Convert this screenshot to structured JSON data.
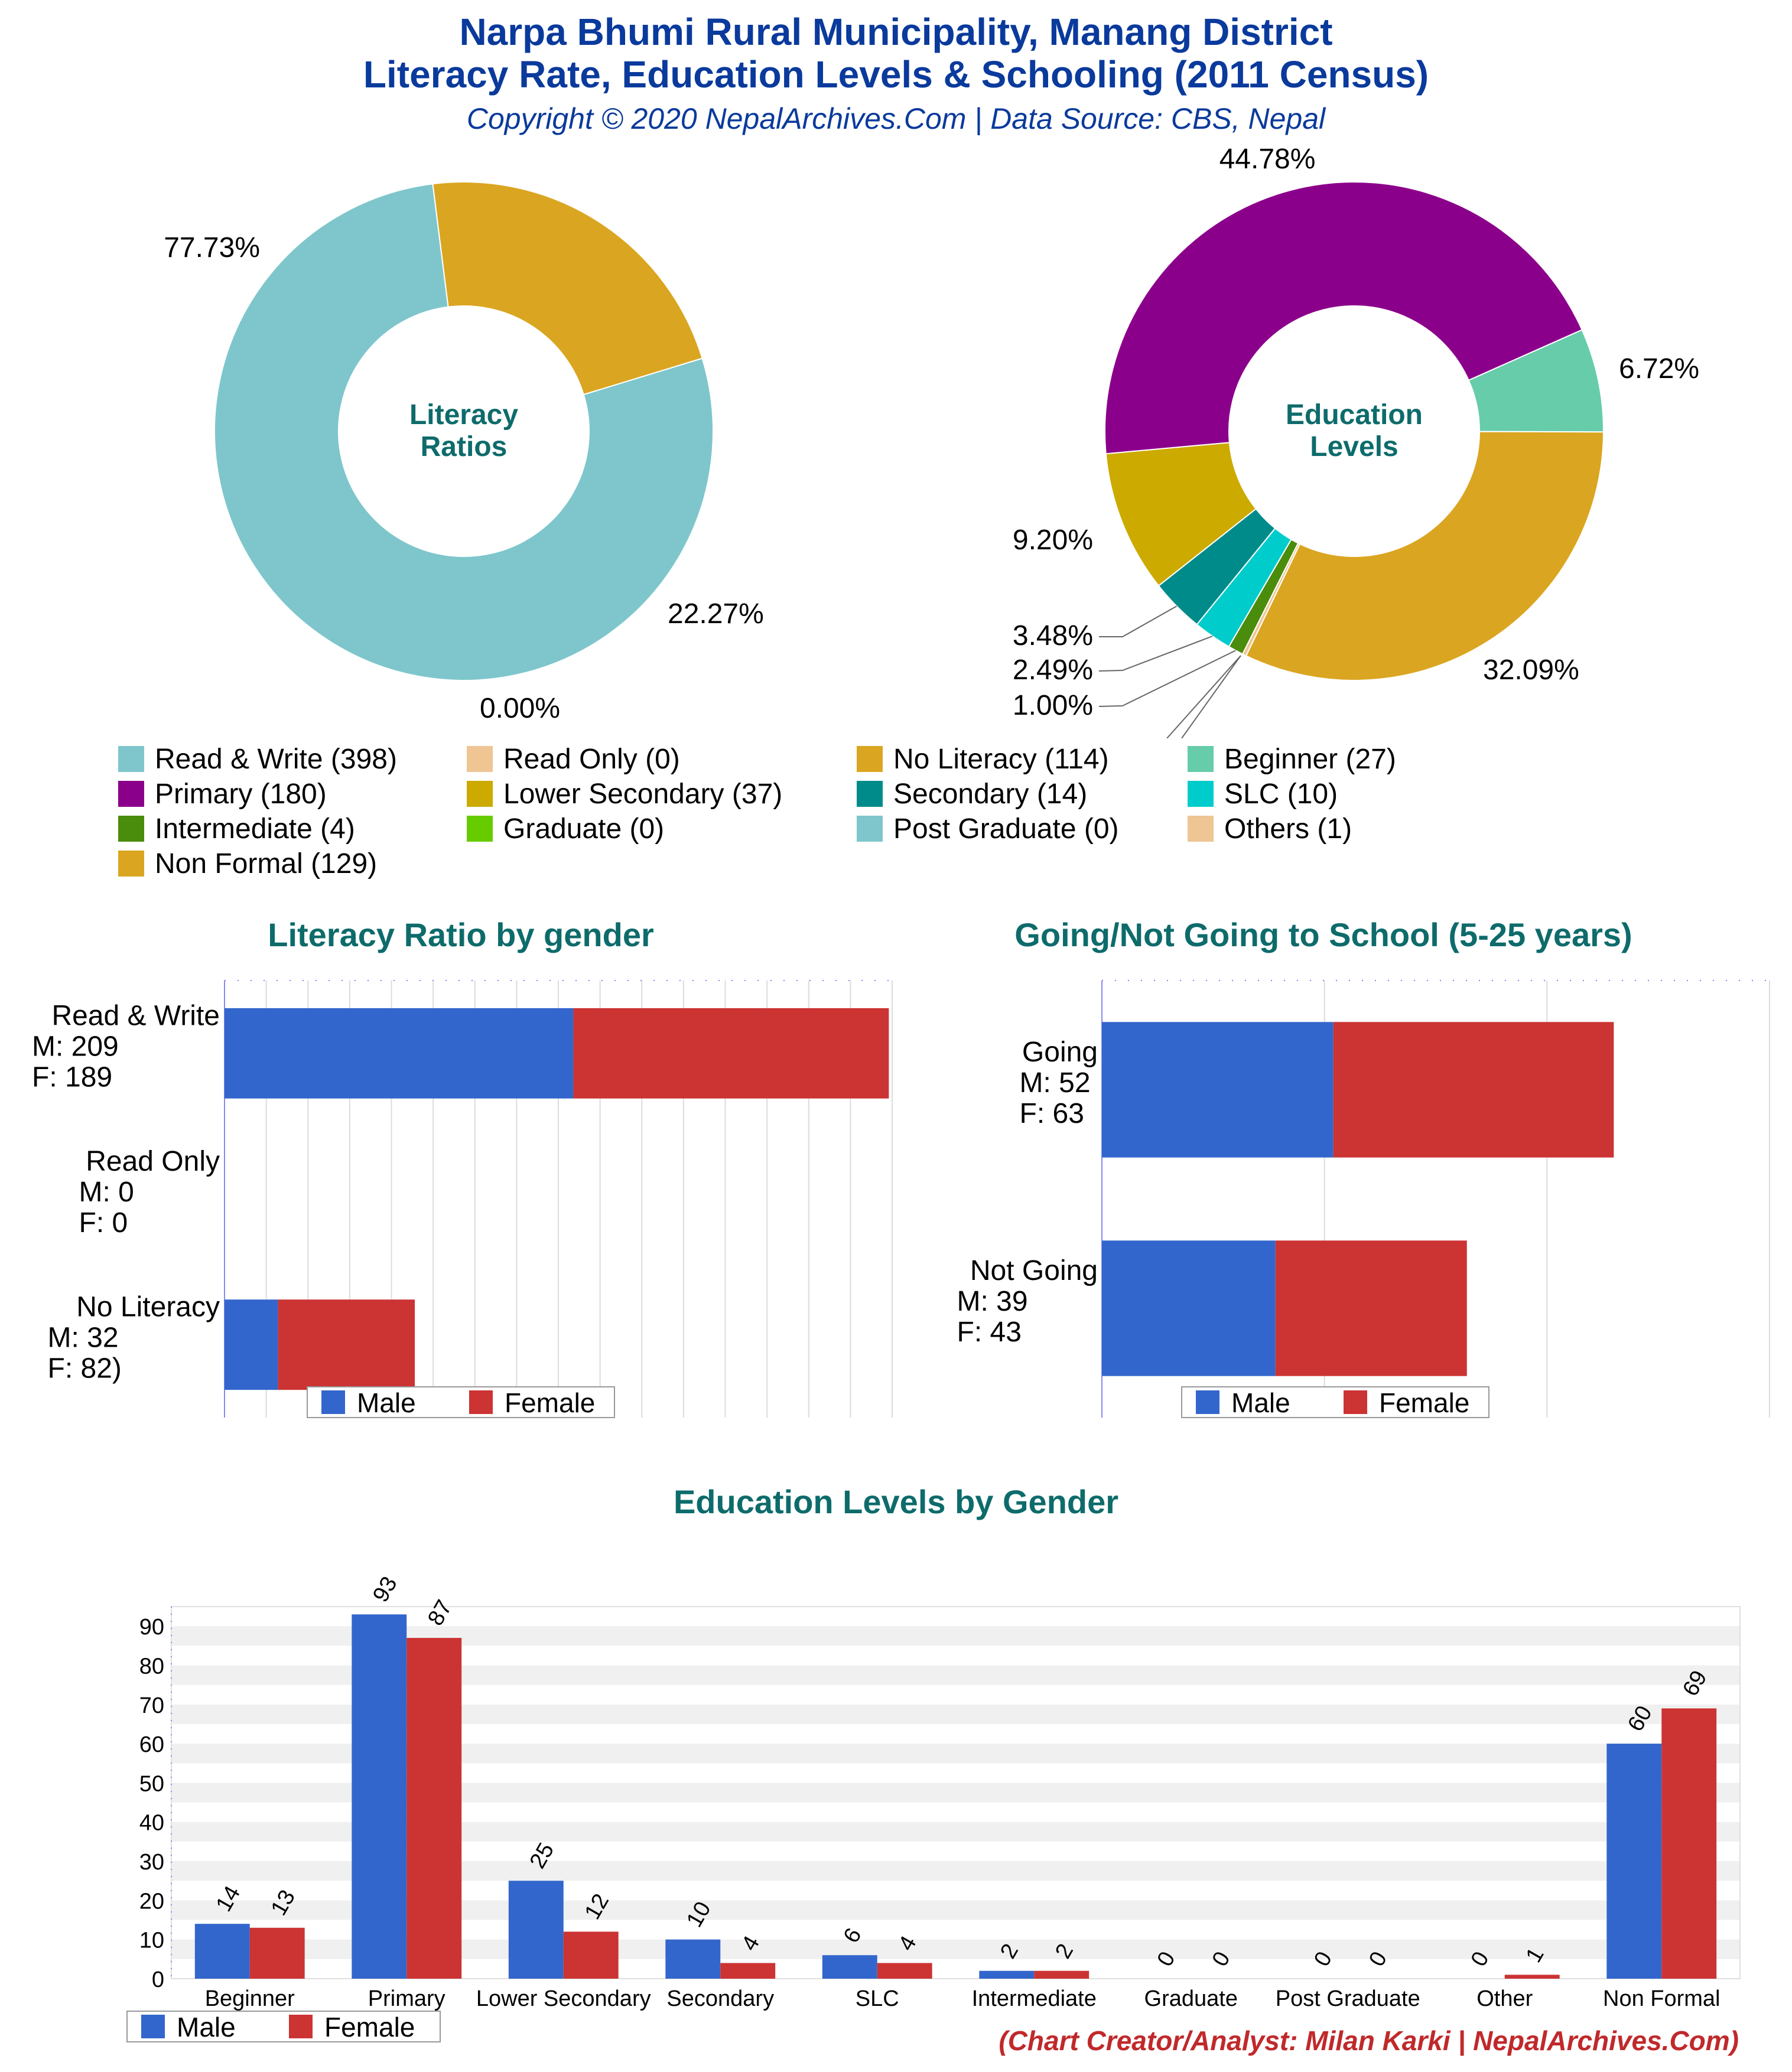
{
  "header": {
    "title_line1": "Narpa Bhumi Rural Municipality, Manang District",
    "title_line2": "Literacy Rate, Education Levels & Schooling (2011 Census)",
    "copyright": "Copyright © 2020 NepalArchives.Com | Data Source: CBS, Nepal"
  },
  "colors": {
    "male": "#3366cc",
    "female": "#cc3333"
  },
  "legend": {
    "items": [
      {
        "label": "Read & Write (398)",
        "color": "#7ec6cc"
      },
      {
        "label": "Read Only (0)",
        "color": "#eec593"
      },
      {
        "label": "No Literacy (114)",
        "color": "#daa520"
      },
      {
        "label": "Beginner (27)",
        "color": "#66ccaa"
      },
      {
        "label": "Primary (180)",
        "color": "#8b008b"
      },
      {
        "label": "Lower Secondary (37)",
        "color": "#ccaa00"
      },
      {
        "label": "Secondary (14)",
        "color": "#008b8b"
      },
      {
        "label": "SLC (10)",
        "color": "#00cccc"
      },
      {
        "label": "Intermediate (4)",
        "color": "#4a8c0c"
      },
      {
        "label": "Graduate (0)",
        "color": "#66cc00"
      },
      {
        "label": "Post Graduate (0)",
        "color": "#7ec6cc"
      },
      {
        "label": "Others (1)",
        "color": "#eec593"
      },
      {
        "label": "Non Formal (129)",
        "color": "#daa520"
      }
    ]
  },
  "footer": {
    "male_label": "Male",
    "female_label": "Female",
    "credit": "(Chart Creator/Analyst: Milan Karki | NepalArchives.Com)"
  },
  "chart_data": [
    {
      "type": "pie",
      "center_label": [
        "Literacy",
        "Ratios"
      ],
      "slices": [
        {
          "name": "Read & Write",
          "value": 398,
          "pct_label": "77.73%",
          "color": "#7ec6cc"
        },
        {
          "name": "Read Only",
          "value": 0,
          "pct_label": "0.00%",
          "color": "#eec593"
        },
        {
          "name": "No Literacy",
          "value": 114,
          "pct_label": "22.27%",
          "color": "#daa520"
        }
      ]
    },
    {
      "type": "pie",
      "center_label": [
        "Education",
        "Levels"
      ],
      "slices": [
        {
          "name": "Beginner",
          "value": 27,
          "pct_label": "6.72%",
          "color": "#66ccaa"
        },
        {
          "name": "Non Formal",
          "value": 129,
          "pct_label": "32.09%",
          "color": "#daa520"
        },
        {
          "name": "Others",
          "value": 1,
          "pct_label": "",
          "color": "#eec593"
        },
        {
          "name": "Graduate",
          "value": 0,
          "pct_label": "",
          "color": "#66cc00"
        },
        {
          "name": "Post Graduate",
          "value": 0,
          "pct_label": "",
          "color": "#7ec6cc"
        },
        {
          "name": "Intermediate",
          "value": 4,
          "pct_label": "1.00%",
          "color": "#4a8c0c"
        },
        {
          "name": "SLC",
          "value": 10,
          "pct_label": "2.49%",
          "color": "#00cccc"
        },
        {
          "name": "Secondary",
          "value": 14,
          "pct_label": "3.48%",
          "color": "#008b8b"
        },
        {
          "name": "Lower Secondary",
          "value": 37,
          "pct_label": "9.20%",
          "color": "#ccaa00"
        },
        {
          "name": "Primary",
          "value": 180,
          "pct_label": "44.78%",
          "color": "#8b008b"
        }
      ]
    },
    {
      "type": "bar",
      "orientation": "horizontal",
      "stacked": true,
      "title": "Literacy Ratio by gender",
      "categories": [
        "Read & Write",
        "Read Only",
        "No Literacy"
      ],
      "category_labels": [
        [
          "Read & Write",
          "M: 209",
          "F: 189"
        ],
        [
          "Read Only",
          "M: 0",
          "F: 0"
        ],
        [
          "No Literacy",
          "M: 32",
          "F: 82)"
        ]
      ],
      "series": [
        {
          "name": "Male",
          "values": [
            209,
            0,
            32
          ]
        },
        {
          "name": "Female",
          "values": [
            189,
            0,
            82
          ]
        }
      ],
      "xlim": [
        0,
        400
      ],
      "legend": "bottom"
    },
    {
      "type": "bar",
      "orientation": "horizontal",
      "stacked": true,
      "title": "Going/Not Going to School (5-25 years)",
      "categories": [
        "Going",
        "Not Going"
      ],
      "category_labels": [
        [
          "Going",
          "M: 52",
          "F: 63"
        ],
        [
          "Not Going",
          "M: 39",
          "F: 43"
        ]
      ],
      "series": [
        {
          "name": "Male",
          "values": [
            52,
            39
          ]
        },
        {
          "name": "Female",
          "values": [
            63,
            43
          ]
        }
      ],
      "xlim": [
        0,
        150
      ],
      "legend": "bottom"
    },
    {
      "type": "bar",
      "title": "Education Levels by Gender",
      "categories": [
        "Beginner",
        "Primary",
        "Lower Secondary",
        "Secondary",
        "SLC",
        "Intermediate",
        "Graduate",
        "Post Graduate",
        "Other",
        "Non Formal"
      ],
      "series": [
        {
          "name": "Male",
          "values": [
            14,
            93,
            25,
            10,
            6,
            2,
            0,
            0,
            0,
            60
          ]
        },
        {
          "name": "Female",
          "values": [
            13,
            87,
            12,
            4,
            4,
            2,
            0,
            0,
            1,
            69
          ]
        }
      ],
      "yticks": [
        0,
        10,
        20,
        30,
        40,
        50,
        60,
        70,
        80,
        90
      ],
      "ylim": [
        0,
        95
      ],
      "legend": "bottom-left"
    }
  ]
}
